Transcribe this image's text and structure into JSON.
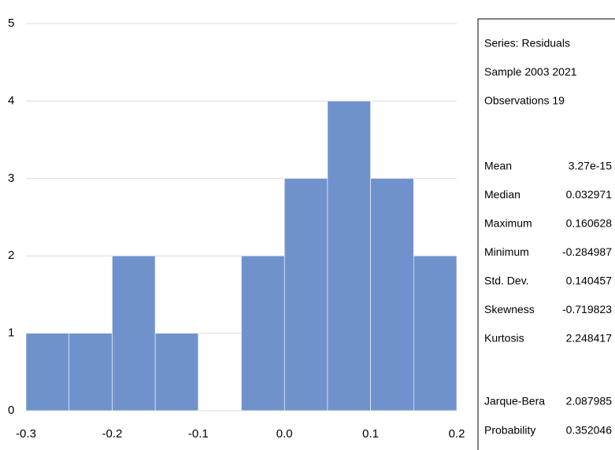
{
  "chart_data": {
    "type": "histogram",
    "bins": [
      -0.3,
      -0.25,
      -0.2,
      -0.15,
      -0.1,
      -0.05,
      0,
      0.05,
      0.1,
      0.15,
      0.2
    ],
    "counts": [
      1,
      1,
      2,
      1,
      0,
      2,
      3,
      4,
      3,
      2
    ],
    "color": "#7092cc",
    "xlim": [
      -0.3,
      0.2
    ],
    "xticks": [
      -0.3,
      -0.2,
      -0.1,
      {
        "value": 0,
        "label": "0.0"
      },
      0.1,
      0.2
    ],
    "ylim": [
      0,
      5
    ],
    "yticks": [
      0,
      1,
      2,
      3,
      4,
      5
    ],
    "grid": true,
    "stats_header": [
      "Series: Residuals",
      "Sample 2003 2021",
      "Observations 19"
    ],
    "stats": [
      {
        "label": "Mean",
        "value": 3.27e-15
      },
      {
        "label": "Median",
        "value": 0.032971
      },
      {
        "label": "Maximum",
        "value": 0.160628
      },
      {
        "label": "Minimum",
        "value": -0.284987
      },
      {
        "label": "Std. Dev.",
        "value": 0.140457
      },
      {
        "label": "Skewness",
        "value": -0.719823
      },
      {
        "label": "Kurtosis",
        "value": 2.248417
      },
      {
        "label": "Jarque-Bera",
        "value": 2.087985
      },
      {
        "label": "Probability",
        "value": 0.352046
      }
    ]
  }
}
